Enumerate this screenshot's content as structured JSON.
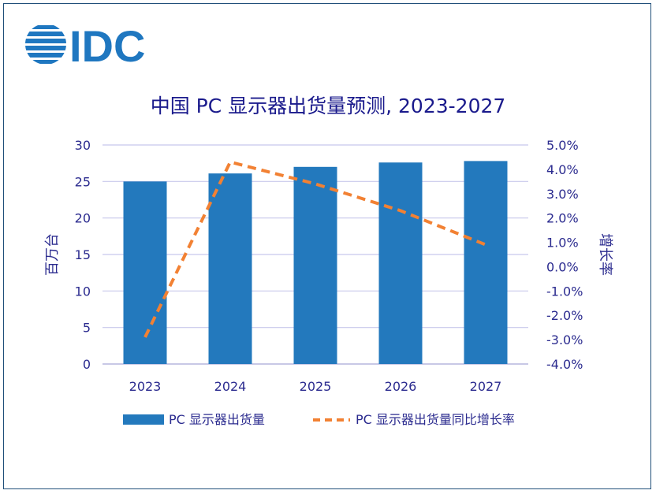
{
  "logo_text": "IDC",
  "chart_data": {
    "type": "bar",
    "title": "中国 PC 显示器出货量预测, 2023-2027",
    "categories": [
      "2023",
      "2024",
      "2025",
      "2026",
      "2027"
    ],
    "series": [
      {
        "name": "PC 显示器出货量",
        "type": "bar",
        "axis": "left",
        "color": "#2379bd",
        "values": [
          25.0,
          26.1,
          27.0,
          27.6,
          27.8
        ]
      },
      {
        "name": "PC 显示器出货量同比增长率",
        "type": "line",
        "style": "dashed",
        "axis": "right",
        "color": "#f28133",
        "values": [
          -2.9,
          4.3,
          3.4,
          2.3,
          0.9
        ]
      }
    ],
    "ylabel": "百万台",
    "y2label": "增长率",
    "ylim": [
      0,
      30
    ],
    "y2lim": [
      -4.0,
      5.0
    ],
    "yticks": [
      "0",
      "5",
      "10",
      "15",
      "20",
      "25",
      "30"
    ],
    "y2ticks": [
      "-4.0%",
      "-3.0%",
      "-2.0%",
      "-1.0%",
      "0.0%",
      "1.0%",
      "2.0%",
      "3.0%",
      "4.0%",
      "5.0%"
    ],
    "grid": true,
    "legend": "bottom"
  }
}
